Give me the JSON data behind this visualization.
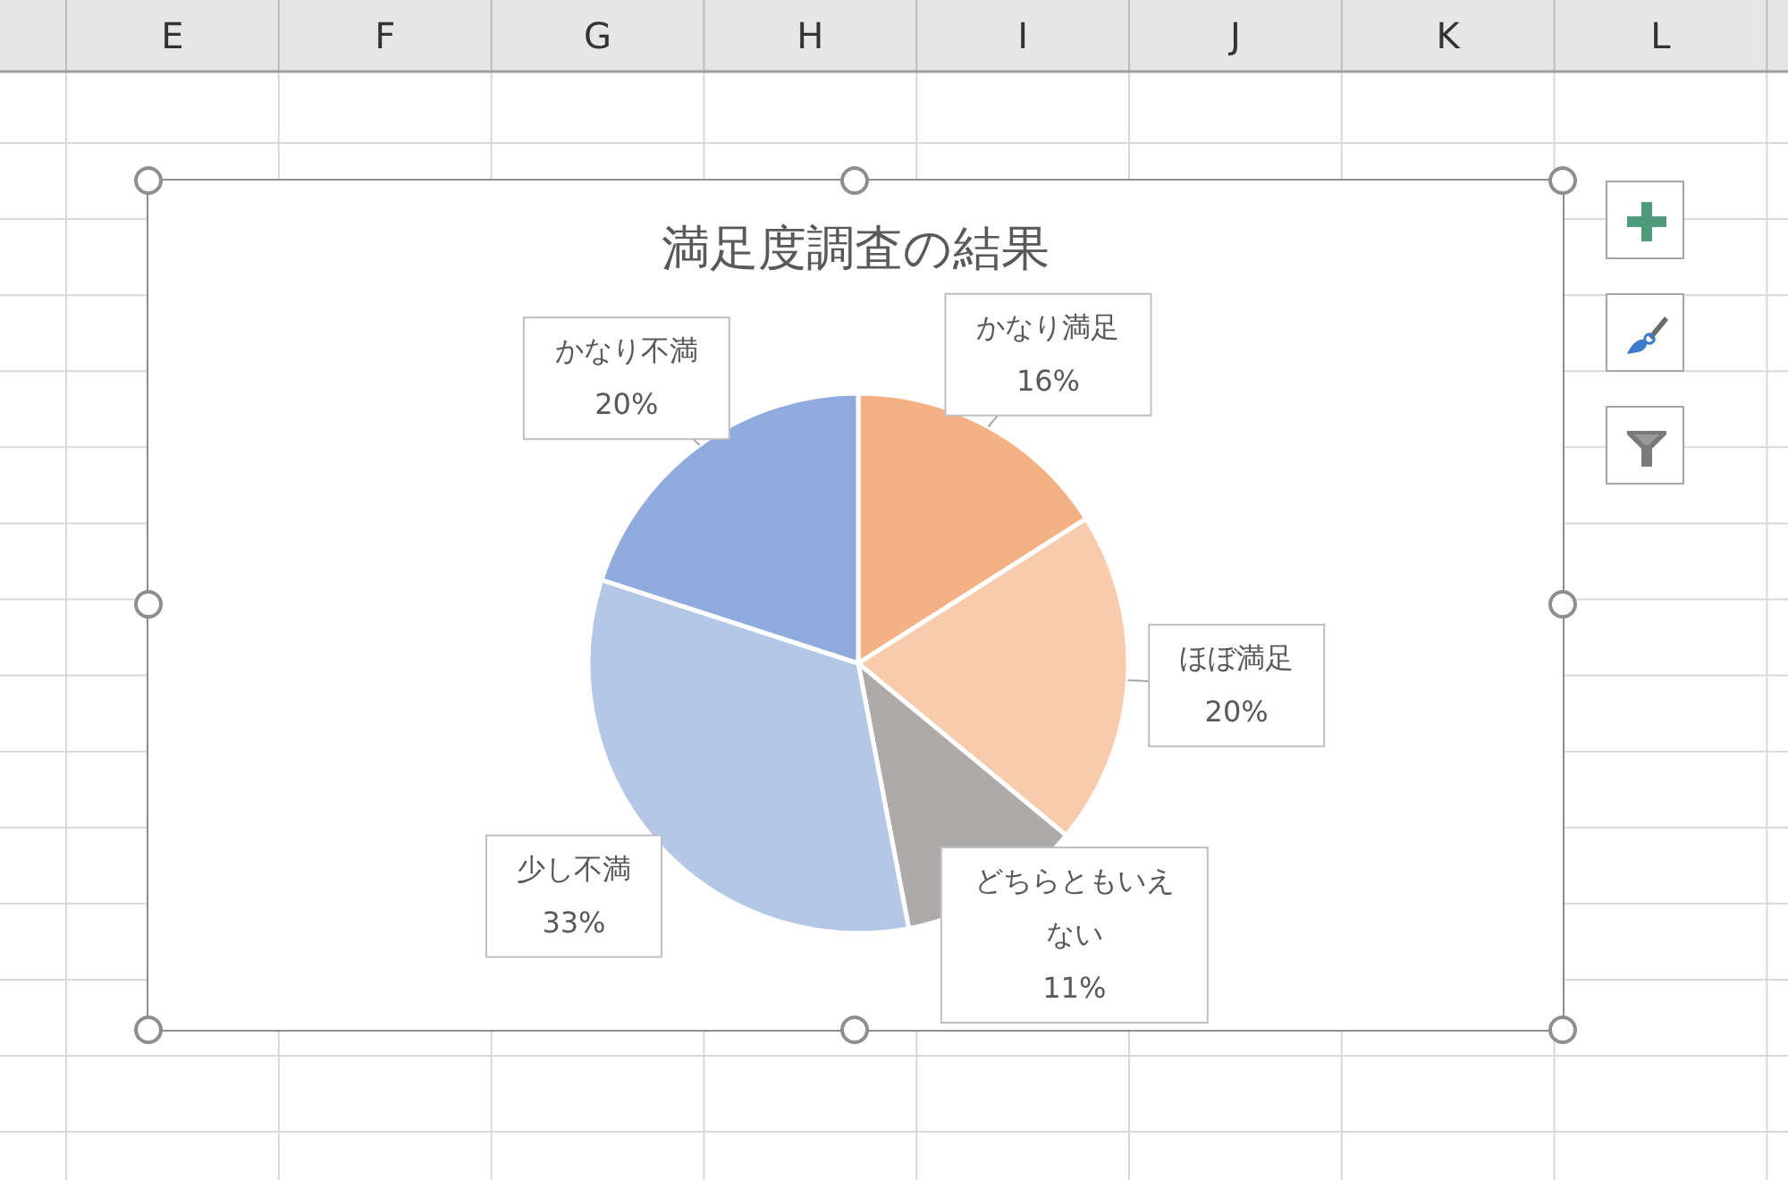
{
  "chart_data": {
    "type": "pie",
    "title": "満足度調査の結果",
    "categories": [
      "かなり満足",
      "ほぼ満足",
      "どちらともいえない",
      "少し不満",
      "かなり不満"
    ],
    "values": [
      16,
      20,
      11,
      33,
      20
    ],
    "value_labels": [
      "16%",
      "20%",
      "11%",
      "33%",
      "20%"
    ],
    "colors": [
      "#f4b183",
      "#f8cbad",
      "#aeaaaa",
      "#b4c7e7",
      "#8faadc"
    ],
    "annotations": [
      "E",
      "F",
      "G",
      "H",
      "I",
      "J",
      "K",
      "L"
    ]
  }
}
